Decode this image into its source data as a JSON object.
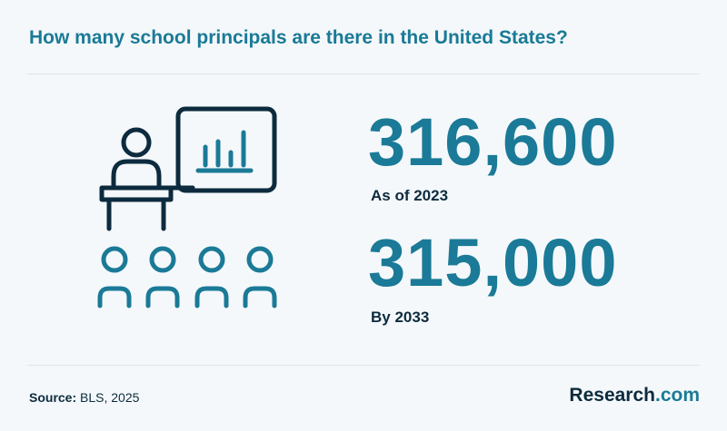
{
  "title": "How many school principals are there in the United States?",
  "stats": [
    {
      "value": "316,600",
      "label": "As of 2023"
    },
    {
      "value": "315,000",
      "label": "By 2033"
    }
  ],
  "source": {
    "label": "Source:",
    "text": "BLS, 2025"
  },
  "brand": {
    "name": "Research",
    "tld": ".com"
  },
  "illustration": {
    "icon": "teacher-presentation-icon",
    "colors": {
      "dark": "#0d2b3e",
      "accent": "#1a7a97"
    }
  },
  "colors": {
    "accent": "#1a7a97",
    "text_dark": "#0d2b3e",
    "background": "#f4f8fa"
  }
}
